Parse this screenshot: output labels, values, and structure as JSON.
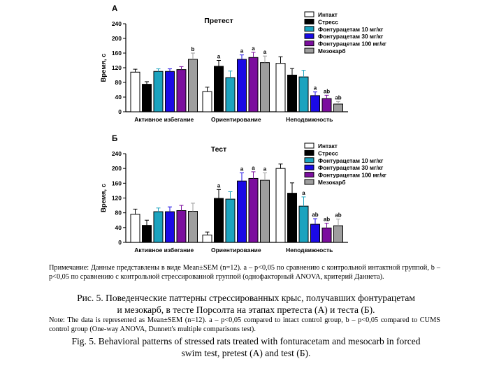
{
  "colors": {
    "intact": "#ffffff",
    "stress": "#000000",
    "fontu10": "#1ba3bf",
    "fontu30": "#1a0ae6",
    "fontu100": "#7b0e9e",
    "mesocarb": "#9e9e9e"
  },
  "chart_data": [
    {
      "type": "bar",
      "panel_letter": "А",
      "title": "Претест",
      "ylabel": "Время, с",
      "xlabel": "",
      "ylim": [
        0,
        240
      ],
      "yticks": [
        "0",
        "40",
        "80",
        "120",
        "160",
        "200",
        "240"
      ],
      "categories": [
        "Активное избегание",
        "Ориентирование",
        "Неподвижность"
      ],
      "legend_position": "top-right",
      "series": [
        {
          "name": "Интакт",
          "color_key": "intact",
          "values": [
            108,
            55,
            132
          ],
          "errors": [
            8,
            12,
            18
          ],
          "labels": [
            "",
            "",
            ""
          ]
        },
        {
          "name": "Стресс",
          "color_key": "stress",
          "values": [
            75,
            124,
            100
          ],
          "errors": [
            7,
            16,
            18
          ],
          "labels": [
            "",
            "a",
            ""
          ]
        },
        {
          "name": "Фонтурацетам 10 мг/кг",
          "color_key": "fontu10",
          "values": [
            110,
            93,
            95
          ],
          "errors": [
            7,
            18,
            18
          ],
          "labels": [
            "",
            "",
            ""
          ]
        },
        {
          "name": "Фонтурацетам 30 мг/кг",
          "color_key": "fontu30",
          "values": [
            110,
            143,
            44
          ],
          "errors": [
            7,
            12,
            10
          ],
          "labels": [
            "",
            "a",
            "a"
          ]
        },
        {
          "name": "Фонтурацетам 100 мг/кг",
          "color_key": "fontu100",
          "values": [
            115,
            148,
            36
          ],
          "errors": [
            8,
            14,
            9
          ],
          "labels": [
            "",
            "a",
            "ab"
          ]
        },
        {
          "name": "Мезокарб",
          "color_key": "mesocarb",
          "values": [
            143,
            134,
            21
          ],
          "errors": [
            17,
            18,
            7
          ],
          "labels": [
            "b",
            "a",
            "ab"
          ]
        }
      ]
    },
    {
      "type": "bar",
      "panel_letter": "Б",
      "title": "Тест",
      "ylabel": "Время, с",
      "xlabel": "",
      "ylim": [
        0,
        240
      ],
      "yticks": [
        "0",
        "40",
        "80",
        "120",
        "160",
        "200",
        "240"
      ],
      "categories": [
        "Активное избегание",
        "Ориентирование",
        "Неподвижность"
      ],
      "legend_position": "top-right",
      "series": [
        {
          "name": "Интакт",
          "color_key": "intact",
          "values": [
            76,
            20,
            200
          ],
          "errors": [
            14,
            8,
            12
          ],
          "labels": [
            "",
            "",
            ""
          ]
        },
        {
          "name": "Стресс",
          "color_key": "stress",
          "values": [
            46,
            119,
            133
          ],
          "errors": [
            14,
            24,
            28
          ],
          "labels": [
            "",
            "a",
            ""
          ]
        },
        {
          "name": "Фонтурацетам 10 мг/кг",
          "color_key": "fontu10",
          "values": [
            83,
            117,
            98
          ],
          "errors": [
            10,
            20,
            25
          ],
          "labels": [
            "",
            "",
            "a"
          ]
        },
        {
          "name": "Фонтурацетам 30 мг/кг",
          "color_key": "fontu30",
          "values": [
            83,
            166,
            49
          ],
          "errors": [
            13,
            22,
            15
          ],
          "labels": [
            "",
            "a",
            "ab"
          ]
        },
        {
          "name": "Фонтурацетам 100 мг/кг",
          "color_key": "fontu100",
          "values": [
            86,
            173,
            39
          ],
          "errors": [
            14,
            18,
            13
          ],
          "labels": [
            "",
            "a",
            "ab"
          ]
        },
        {
          "name": "Мезокарб",
          "color_key": "mesocarb",
          "values": [
            84,
            168,
            45
          ],
          "errors": [
            22,
            20,
            18
          ],
          "labels": [
            "",
            "a",
            "ab"
          ]
        }
      ]
    }
  ],
  "notes": {
    "ru_note": "Примечание: Данные представлены в виде Mean±SEM (n=12). a – p<0,05 по сравнению с контрольной интактной группой, b – p<0,05 по сравнению с контрольной стрессированной группой (однофакторный ANOVA, критерий Даннета).",
    "ru_caption_1": "Рис. 5. Поведенческие паттерны стрессированных крыс, получавших фонтурацетам",
    "ru_caption_2": "и мезокарб, в тесте Порсолта на этапах претеста (А) и теста (Б).",
    "en_note": "Note: The data is represented as Mean±SEM (n=12). a – p<0,05 compared to intact control group, b – p<0,05 compared to CUMS control group (One-way ANOVA, Dunnett's multiple comparisons test).",
    "en_caption_1": "Fig. 5. Behavioral patterns of stressed rats treated with fonturacetam and mesocarb in forced",
    "en_caption_2": "swim test, pretest (А) and test (Б)."
  }
}
